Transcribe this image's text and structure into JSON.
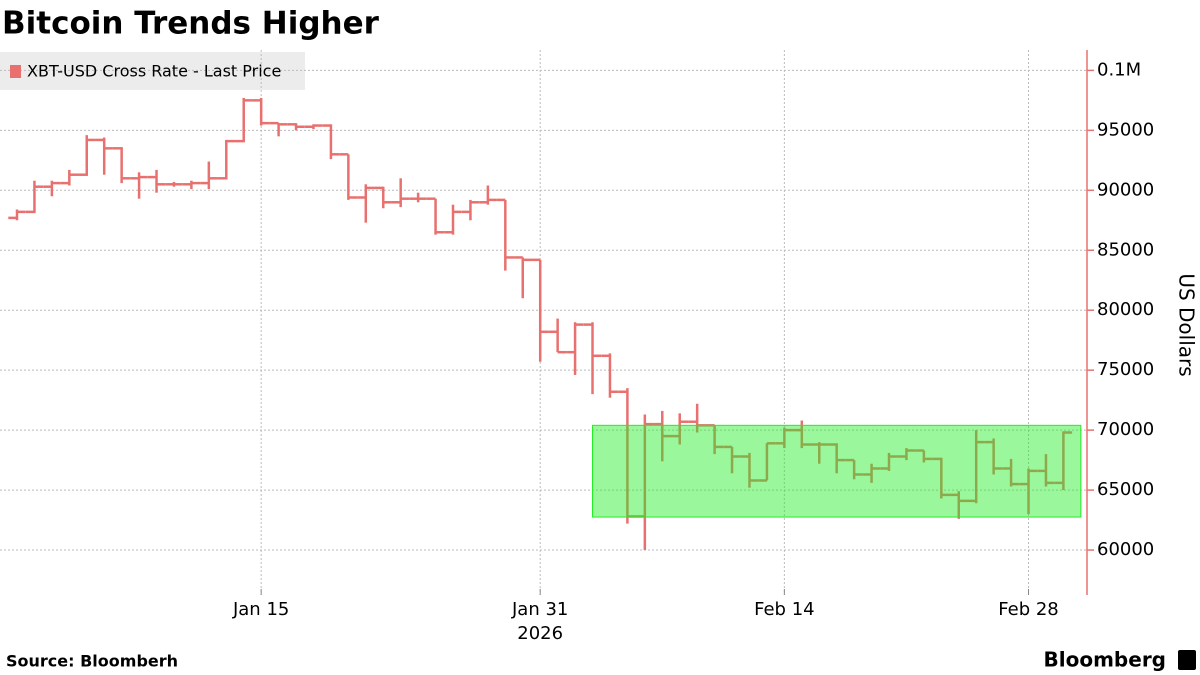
{
  "chart_data": {
    "type": "ohlc",
    "title": "Bitcoin Trends Higher",
    "y_label": "US Dollars",
    "source": "Source: Bloomberh",
    "brand": "Bloomberg",
    "year_label": "2026",
    "x": [
      "2026-01-01",
      "2026-01-02",
      "2026-01-03",
      "2026-01-04",
      "2026-01-05",
      "2026-01-06",
      "2026-01-07",
      "2026-01-08",
      "2026-01-09",
      "2026-01-10",
      "2026-01-11",
      "2026-01-12",
      "2026-01-13",
      "2026-01-14",
      "2026-01-15",
      "2026-01-16",
      "2026-01-17",
      "2026-01-18",
      "2026-01-19",
      "2026-01-20",
      "2026-01-21",
      "2026-01-22",
      "2026-01-23",
      "2026-01-24",
      "2026-01-25",
      "2026-01-26",
      "2026-01-27",
      "2026-01-28",
      "2026-01-29",
      "2026-01-30",
      "2026-01-31",
      "2026-02-01",
      "2026-02-02",
      "2026-02-03",
      "2026-02-04",
      "2026-02-05",
      "2026-02-06",
      "2026-02-07",
      "2026-02-08",
      "2026-02-09",
      "2026-02-10",
      "2026-02-11",
      "2026-02-12",
      "2026-02-13",
      "2026-02-14",
      "2026-02-15",
      "2026-02-16",
      "2026-02-17",
      "2026-02-18",
      "2026-02-19",
      "2026-02-20",
      "2026-02-21",
      "2026-02-22",
      "2026-02-23",
      "2026-02-24",
      "2026-02-25",
      "2026-02-26",
      "2026-02-27",
      "2026-02-28",
      "2026-03-01",
      "2026-03-02"
    ],
    "series": [
      {
        "name": "XBT-USD Cross Rate - Last Price",
        "color": "#e8716f",
        "open": [
          87700,
          88200,
          90300,
          90600,
          91300,
          94200,
          93500,
          91000,
          91100,
          90500,
          90500,
          90600,
          91000,
          94100,
          97500,
          95600,
          95500,
          95300,
          95400,
          93000,
          89400,
          90200,
          89000,
          89300,
          89300,
          86500,
          88200,
          89000,
          89200,
          84400,
          84200,
          78200,
          76500,
          78800,
          76200,
          73200,
          62800,
          70500,
          69500,
          70700,
          70400,
          68600,
          67800,
          65800,
          68900,
          70000,
          68800,
          68800,
          67500,
          66300,
          66800,
          67800,
          68300,
          67600,
          64600,
          64100,
          69000,
          66800,
          65500,
          66600,
          65600
        ],
        "high": [
          88400,
          90800,
          90800,
          91700,
          94600,
          94400,
          93600,
          91500,
          91700,
          90700,
          90800,
          92400,
          94200,
          97700,
          97700,
          95600,
          95600,
          95500,
          95500,
          93000,
          90500,
          90300,
          91000,
          89800,
          89300,
          88800,
          89200,
          90400,
          89200,
          84400,
          84200,
          79300,
          79000,
          79000,
          76400,
          73500,
          71300,
          71600,
          71400,
          72200,
          70400,
          68600,
          68100,
          68900,
          70200,
          70800,
          69000,
          68900,
          67500,
          67200,
          68100,
          68500,
          68300,
          67700,
          64900,
          70000,
          69300,
          67600,
          66800,
          68000,
          69900
        ],
        "low": [
          87500,
          88100,
          89500,
          90400,
          91200,
          91300,
          90600,
          89300,
          89800,
          90300,
          90100,
          90100,
          90900,
          94000,
          95400,
          94500,
          95000,
          95100,
          92600,
          89200,
          87300,
          88500,
          88600,
          89000,
          86300,
          86300,
          87500,
          88800,
          83300,
          81000,
          75700,
          76500,
          74600,
          73000,
          72700,
          62200,
          60000,
          67400,
          68800,
          69800,
          68000,
          66400,
          65200,
          65800,
          68500,
          68500,
          67200,
          66400,
          65900,
          65600,
          66600,
          67500,
          67300,
          64300,
          62600,
          63900,
          66300,
          65300,
          63000,
          65300,
          65000
        ],
        "close": [
          88200,
          90300,
          90600,
          91300,
          94200,
          93500,
          91000,
          91100,
          90500,
          90500,
          90600,
          91000,
          94100,
          97500,
          95600,
          95500,
          95300,
          95400,
          93000,
          89400,
          90200,
          89000,
          89300,
          89300,
          86500,
          88200,
          89000,
          89200,
          84400,
          84200,
          78200,
          76500,
          78800,
          76200,
          73200,
          62800,
          70500,
          69500,
          70700,
          70400,
          68600,
          67800,
          65800,
          68900,
          70000,
          68800,
          68800,
          67500,
          66300,
          66800,
          67800,
          68300,
          67600,
          64600,
          64100,
          69000,
          66800,
          65500,
          66600,
          65600,
          69800
        ]
      }
    ],
    "highlight": {
      "x": [
        "2026-02-03",
        "2026-03-03"
      ],
      "y": [
        62750,
        70400
      ],
      "color": "#22ee22"
    },
    "xticks": [
      {
        "value": "2026-01-15",
        "label": "Jan 15"
      },
      {
        "value": "2026-01-31",
        "label": "Jan 31"
      },
      {
        "value": "2026-02-14",
        "label": "Feb 14"
      },
      {
        "value": "2026-02-28",
        "label": "Feb 28"
      }
    ],
    "ylim": [
      56250,
      101700
    ],
    "yticks": [
      60000,
      65000,
      70000,
      75000,
      80000,
      85000,
      90000,
      95000,
      {
        "value": 100000,
        "label": "0.1M"
      }
    ],
    "grid": true
  }
}
